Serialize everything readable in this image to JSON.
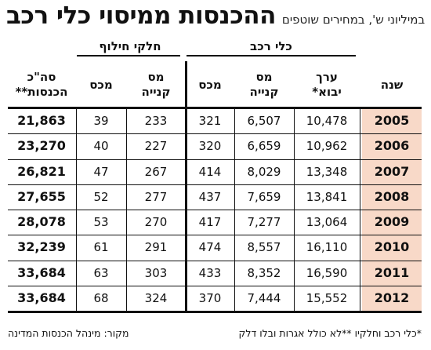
{
  "header": {
    "title": "ההכנסות ממיסוי כלי רכב",
    "subtitle": "במיליוני ש', במחירים שוטפים"
  },
  "groups": {
    "vehicles": "כלי רכב",
    "parts": "חלקי חילוף"
  },
  "columns": [
    {
      "key": "year",
      "label": "שנה"
    },
    {
      "key": "import_value",
      "label": "ערך\nיבוא*"
    },
    {
      "key": "vehicle_purchase_tax",
      "label": "מס\nקנייה"
    },
    {
      "key": "vehicle_customs",
      "label": "מכס"
    },
    {
      "key": "parts_purchase_tax",
      "label": "מס\nקנייה"
    },
    {
      "key": "parts_customs",
      "label": "מכס"
    },
    {
      "key": "total",
      "label": "סה\"כ\nהכנסות**"
    }
  ],
  "chart_data": {
    "type": "table",
    "title": "ההכנסות ממיסוי כלי רכב",
    "subtitle": "במיליוני ש', במחירים שוטפים",
    "rows": [
      {
        "year": "2005",
        "import_value": "10,478",
        "vehicle_purchase_tax": "6,507",
        "vehicle_customs": "321",
        "parts_purchase_tax": "233",
        "parts_customs": "39",
        "total": "21,863"
      },
      {
        "year": "2006",
        "import_value": "10,962",
        "vehicle_purchase_tax": "6,659",
        "vehicle_customs": "320",
        "parts_purchase_tax": "227",
        "parts_customs": "40",
        "total": "23,270"
      },
      {
        "year": "2007",
        "import_value": "13,348",
        "vehicle_purchase_tax": "8,029",
        "vehicle_customs": "414",
        "parts_purchase_tax": "267",
        "parts_customs": "47",
        "total": "26,821"
      },
      {
        "year": "2008",
        "import_value": "13,841",
        "vehicle_purchase_tax": "7,659",
        "vehicle_customs": "437",
        "parts_purchase_tax": "277",
        "parts_customs": "52",
        "total": "27,655"
      },
      {
        "year": "2009",
        "import_value": "13,064",
        "vehicle_purchase_tax": "7,277",
        "vehicle_customs": "417",
        "parts_purchase_tax": "270",
        "parts_customs": "53",
        "total": "28,078"
      },
      {
        "year": "2010",
        "import_value": "16,110",
        "vehicle_purchase_tax": "8,557",
        "vehicle_customs": "474",
        "parts_purchase_tax": "291",
        "parts_customs": "61",
        "total": "32,239"
      },
      {
        "year": "2011",
        "import_value": "16,590",
        "vehicle_purchase_tax": "8,352",
        "vehicle_customs": "433",
        "parts_purchase_tax": "303",
        "parts_customs": "63",
        "total": "33,684"
      },
      {
        "year": "2012",
        "import_value": "15,552",
        "vehicle_purchase_tax": "7,444",
        "vehicle_customs": "370",
        "parts_purchase_tax": "324",
        "parts_customs": "68",
        "total": "33,684"
      }
    ]
  },
  "footer": {
    "notes": "*כלי רכב וחלקיו  **לא כולל אגרות ובלו דלק",
    "source": "מקור: מינהל הכנסות המדינה"
  },
  "colors": {
    "year_highlight": "#f8d9c8",
    "ink": "#111111"
  }
}
